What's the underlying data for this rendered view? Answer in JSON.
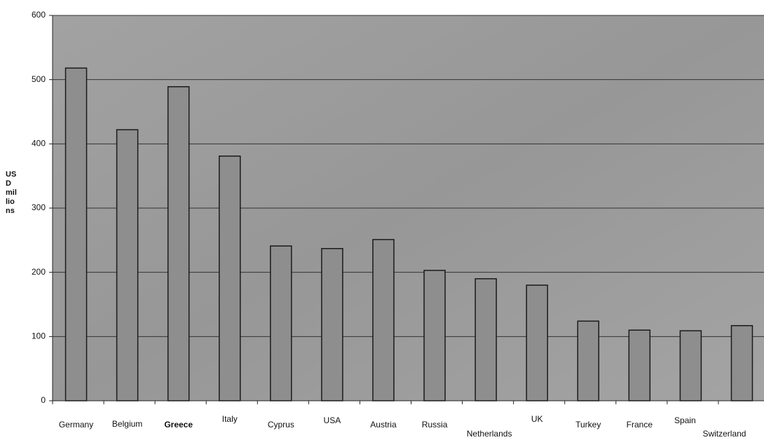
{
  "chart_data": {
    "type": "bar",
    "ylabel": "USD millions",
    "categories": [
      "Germany",
      "Belgium",
      "Greece",
      "Italy",
      "Cyprus",
      "USA",
      "Austria",
      "Russia",
      "Netherlands",
      "UK",
      "Turkey",
      "France",
      "Spain",
      "Switzerland"
    ],
    "values": [
      518,
      422,
      489,
      381,
      241,
      237,
      251,
      203,
      190,
      180,
      124,
      110,
      109,
      117
    ],
    "color": "#8e8e8e",
    "ylim": [
      0,
      600
    ],
    "yticks": [
      0,
      100,
      200,
      300,
      400,
      500,
      600
    ],
    "grid": true
  }
}
